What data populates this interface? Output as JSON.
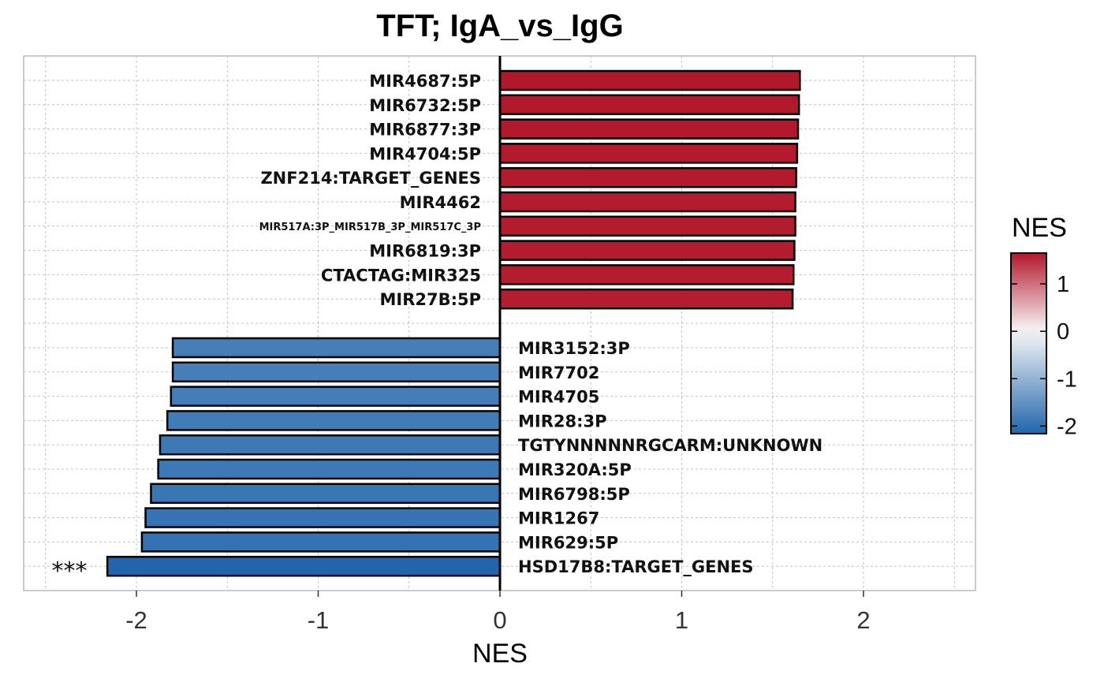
{
  "chart_data": {
    "type": "bar",
    "orientation": "horizontal",
    "title": "TFT; IgA_vs_IgG",
    "xlabel": "NES",
    "ylabel": "",
    "xlim": [
      -2.6,
      2.6
    ],
    "x_ticks": [
      -2,
      -1,
      0,
      1,
      2
    ],
    "x_tick_labels": [
      "-2",
      "-1",
      "0",
      "1",
      "2"
    ],
    "grid": true,
    "categories": [
      "MIR4687:5P",
      "MIR6732:5P",
      "MIR6877:3P",
      "MIR4704:5P",
      "ZNF214:TARGET_GENES",
      "MIR4462",
      "MIR517A:3P_MIR517B_3P_MIR517C_3P",
      "MIR6819:3P",
      "CTACTAG:MIR325",
      "MIR27B:5P",
      "MIR3152:3P",
      "MIR7702",
      "MIR4705",
      "MIR28:3P",
      "TGTYNNNNNRGCARM:UNKNOWN",
      "MIR320A:5P",
      "MIR6798:5P",
      "MIR1267",
      "MIR629:5P",
      "HSD17B8:TARGET_GENES"
    ],
    "values": [
      1.65,
      1.645,
      1.64,
      1.635,
      1.63,
      1.625,
      1.625,
      1.62,
      1.615,
      1.61,
      -1.8,
      -1.8,
      -1.81,
      -1.83,
      -1.87,
      -1.88,
      -1.92,
      -1.95,
      -1.97,
      -2.16
    ],
    "significance": [
      "",
      "",
      "",
      "",
      "",
      "",
      "",
      "",
      "",
      "",
      "",
      "",
      "",
      "",
      "",
      "",
      "",
      "",
      "",
      "***"
    ],
    "legend": {
      "title": "NES",
      "position": "right",
      "ticks": [
        1,
        0,
        -1,
        -2
      ],
      "tick_labels": [
        "1",
        "0",
        "-1",
        "-2"
      ],
      "range": [
        -2.16,
        1.65
      ],
      "colors": {
        "low": "#2166ac",
        "mid": "#f7f7f7",
        "high": "#b2182b"
      }
    }
  }
}
